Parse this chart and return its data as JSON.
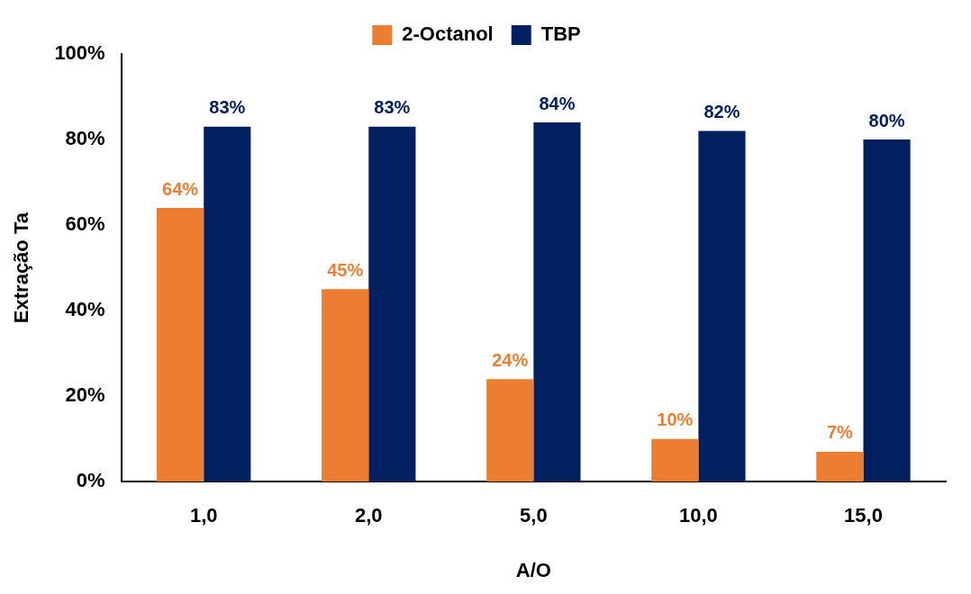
{
  "chart_data": {
    "type": "bar",
    "xlabel": "A/O",
    "ylabel": "Extração Ta",
    "categories": [
      "1,0",
      "2,0",
      "5,0",
      "10,0",
      "15,0"
    ],
    "series": [
      {
        "name": "2-Octanol",
        "color": "#ed7d31",
        "values": [
          64,
          45,
          24,
          10,
          7
        ],
        "value_labels": [
          "64%",
          "45%",
          "24%",
          "10%",
          "7%"
        ]
      },
      {
        "name": "TBP",
        "color": "#002060",
        "values": [
          83,
          83,
          84,
          82,
          80
        ],
        "value_labels": [
          "83%",
          "83%",
          "84%",
          "82%",
          "80%"
        ]
      }
    ],
    "ylim": [
      0,
      100
    ],
    "yticks": [
      {
        "value": 0,
        "label": "0%"
      },
      {
        "value": 20,
        "label": "20%"
      },
      {
        "value": 40,
        "label": "40%"
      },
      {
        "value": 60,
        "label": "60%"
      },
      {
        "value": 80,
        "label": "80%"
      },
      {
        "value": 100,
        "label": "100%"
      }
    ],
    "grid": false,
    "legend": "top"
  }
}
